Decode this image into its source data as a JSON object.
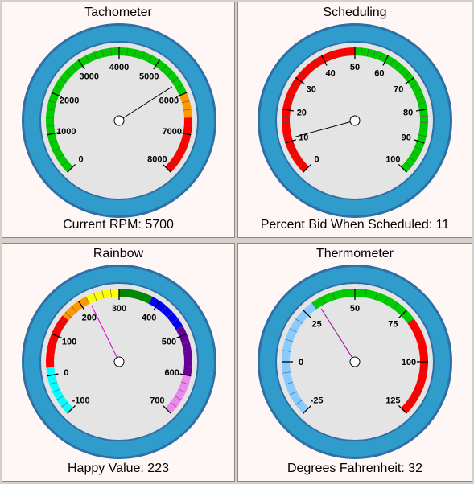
{
  "gauges": [
    {
      "title": "Tachometer",
      "footer": "Current RPM: 5700",
      "min": 0,
      "max": 8000,
      "value": 5700,
      "ticks": [
        {
          "v": 0,
          "label": "0"
        },
        {
          "v": 1000,
          "label": "1000"
        },
        {
          "v": 2000,
          "label": "2000"
        },
        {
          "v": 3000,
          "label": "3000"
        },
        {
          "v": 4000,
          "label": "4000"
        },
        {
          "v": 5000,
          "label": "5000"
        },
        {
          "v": 6000,
          "label": "6000"
        },
        {
          "v": 7000,
          "label": "7000"
        },
        {
          "v": 8000,
          "label": "8000"
        }
      ],
      "bands": [
        {
          "from": 0,
          "to": 6000,
          "color": "#00cc00"
        },
        {
          "from": 6000,
          "to": 6600,
          "color": "#ff9900"
        },
        {
          "from": 6600,
          "to": 8000,
          "color": "#ff0000"
        }
      ],
      "needle_color": "#000000"
    },
    {
      "title": "Scheduling",
      "footer": "Percent Bid When Scheduled: 11",
      "min": 0,
      "max": 100,
      "value": 11,
      "ticks": [
        {
          "v": 0,
          "label": "0"
        },
        {
          "v": 10,
          "label": "10"
        },
        {
          "v": 20,
          "label": "20"
        },
        {
          "v": 30,
          "label": "30"
        },
        {
          "v": 40,
          "label": "40"
        },
        {
          "v": 50,
          "label": "50"
        },
        {
          "v": 60,
          "label": "60"
        },
        {
          "v": 70,
          "label": "70"
        },
        {
          "v": 80,
          "label": "80"
        },
        {
          "v": 90,
          "label": "90"
        },
        {
          "v": 100,
          "label": "100"
        }
      ],
      "bands": [
        {
          "from": 0,
          "to": 50,
          "color": "#ff0000"
        },
        {
          "from": 50,
          "to": 100,
          "color": "#00cc00"
        }
      ],
      "needle_color": "#000000"
    },
    {
      "title": "Rainbow",
      "footer": "Happy Value: 223",
      "min": -100,
      "max": 700,
      "value": 223,
      "ticks": [
        {
          "v": -100,
          "label": "-100"
        },
        {
          "v": 0,
          "label": "0"
        },
        {
          "v": 100,
          "label": "100"
        },
        {
          "v": 200,
          "label": "200"
        },
        {
          "v": 300,
          "label": "300"
        },
        {
          "v": 400,
          "label": "400"
        },
        {
          "v": 500,
          "label": "500"
        },
        {
          "v": 600,
          "label": "600"
        },
        {
          "v": 700,
          "label": "700"
        }
      ],
      "bands": [
        {
          "from": -100,
          "to": 20,
          "color": "#00ffff"
        },
        {
          "from": 20,
          "to": 150,
          "color": "#ff0000"
        },
        {
          "from": 150,
          "to": 220,
          "color": "#ff9900"
        },
        {
          "from": 220,
          "to": 300,
          "color": "#ffff00"
        },
        {
          "from": 300,
          "to": 380,
          "color": "#008800"
        },
        {
          "from": 380,
          "to": 480,
          "color": "#0000ff"
        },
        {
          "from": 480,
          "to": 600,
          "color": "#660099"
        },
        {
          "from": 600,
          "to": 700,
          "color": "#ee88ee"
        }
      ],
      "needle_color": "#cc00cc"
    },
    {
      "title": "Thermometer",
      "footer": "Degrees Fahrenheit: 32",
      "min": -25,
      "max": 125,
      "value": 32,
      "ticks": [
        {
          "v": -25,
          "label": "-25"
        },
        {
          "v": 0,
          "label": "0"
        },
        {
          "v": 25,
          "label": "25"
        },
        {
          "v": 50,
          "label": "50"
        },
        {
          "v": 75,
          "label": "75"
        },
        {
          "v": 100,
          "label": "100"
        },
        {
          "v": 125,
          "label": "125"
        }
      ],
      "bands": [
        {
          "from": -25,
          "to": 30,
          "color": "#88ccff"
        },
        {
          "from": 30,
          "to": 80,
          "color": "#00cc00"
        },
        {
          "from": 80,
          "to": 125,
          "color": "#ff0000"
        }
      ],
      "needle_color": "#990099"
    }
  ],
  "colors": {
    "rim_outer": "#2d6fa6",
    "rim": "#2f9ccc",
    "face": "#e4e4e4",
    "hub": "#ffffff"
  }
}
